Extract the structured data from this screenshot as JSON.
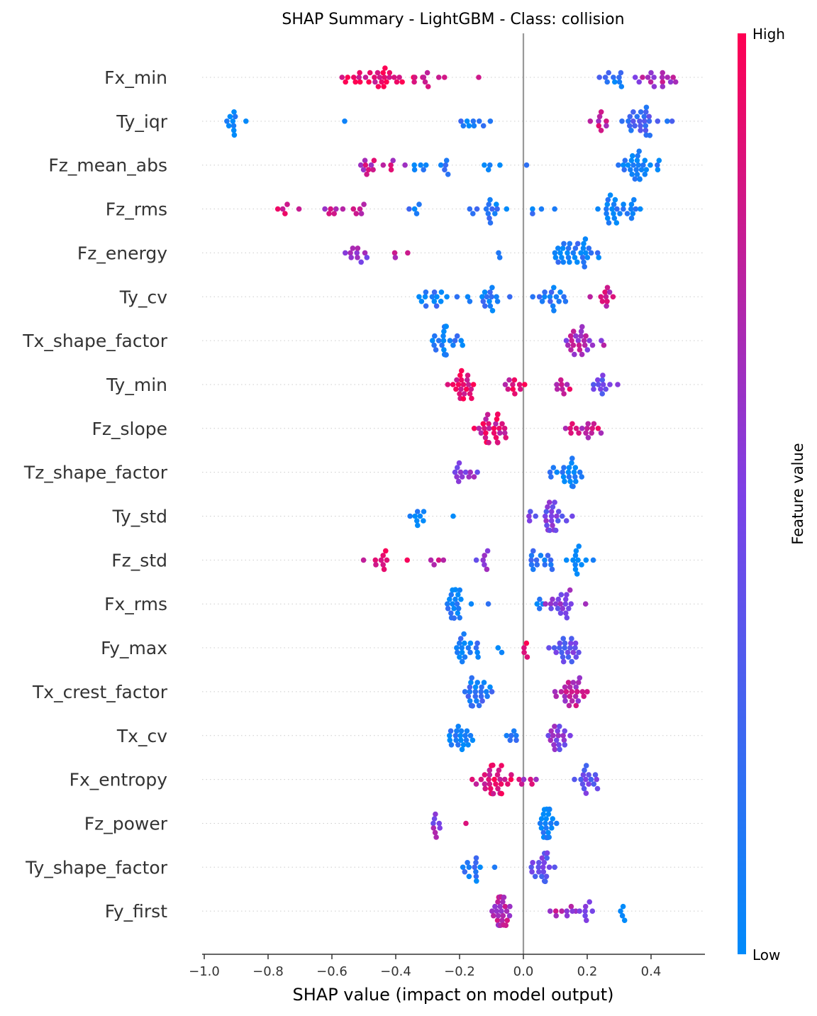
{
  "chart_data": {
    "type": "scatter",
    "title": "SHAP Summary - LightGBM - Class: collision",
    "xlabel": "SHAP value (impact on model output)",
    "xlim": [
      -1.0,
      0.57
    ],
    "x_ticks": [
      "−1.0",
      "−0.8",
      "−0.6",
      "−0.4",
      "−0.2",
      "0.0",
      "0.2",
      "0.4"
    ],
    "x_tick_values": [
      -1.0,
      -0.8,
      -0.6,
      -0.4,
      -0.2,
      0.0,
      0.2,
      0.4
    ],
    "colorbar": {
      "label": "Feature value",
      "high": "High",
      "low": "Low",
      "low_color": "#008bfb",
      "high_color": "#ff0052"
    },
    "features": [
      {
        "name": "Fx_min",
        "clusters": [
          [
            -0.46,
            32,
            0.13,
            0.9
          ],
          [
            -0.3,
            6,
            0.06,
            0.85
          ],
          [
            -0.14,
            1,
            0.0,
            0.9
          ],
          [
            0.3,
            10,
            0.07,
            0.15
          ],
          [
            0.42,
            16,
            0.08,
            0.65
          ]
        ]
      },
      {
        "name": "Ty_iqr",
        "clusters": [
          [
            -0.91,
            10,
            0.03,
            0.05
          ],
          [
            -0.56,
            1,
            0.0,
            0.05
          ],
          [
            -0.15,
            9,
            0.05,
            0.1
          ],
          [
            0.24,
            8,
            0.03,
            0.75
          ],
          [
            0.38,
            26,
            0.06,
            0.25
          ]
        ]
      },
      {
        "name": "Fz_mean_abs",
        "clusters": [
          [
            -0.45,
            14,
            0.06,
            0.75
          ],
          [
            -0.3,
            10,
            0.06,
            0.15
          ],
          [
            -0.1,
            4,
            0.04,
            0.1
          ],
          [
            0.01,
            1,
            0.0,
            0.1
          ],
          [
            0.36,
            28,
            0.06,
            0.05
          ]
        ]
      },
      {
        "name": "Fz_rms",
        "clusters": [
          [
            -0.74,
            4,
            0.03,
            0.85
          ],
          [
            -0.56,
            12,
            0.08,
            0.7
          ],
          [
            -0.32,
            4,
            0.05,
            0.15
          ],
          [
            -0.1,
            14,
            0.06,
            0.1
          ],
          [
            0.05,
            4,
            0.05,
            0.1
          ],
          [
            0.3,
            26,
            0.06,
            0.05
          ]
        ]
      },
      {
        "name": "Fz_energy",
        "clusters": [
          [
            -0.52,
            10,
            0.05,
            0.6
          ],
          [
            -0.38,
            3,
            0.03,
            0.8
          ],
          [
            -0.08,
            2,
            0.01,
            0.1
          ],
          [
            0.15,
            32,
            0.07,
            0.1
          ]
        ]
      },
      {
        "name": "Ty_cv",
        "clusters": [
          [
            -0.29,
            14,
            0.06,
            0.1
          ],
          [
            -0.11,
            16,
            0.06,
            0.1
          ],
          [
            0.08,
            16,
            0.06,
            0.15
          ],
          [
            0.26,
            10,
            0.04,
            0.75
          ]
        ]
      },
      {
        "name": "Tx_shape_factor",
        "clusters": [
          [
            -0.24,
            22,
            0.05,
            0.1
          ],
          [
            0.17,
            24,
            0.05,
            0.65
          ]
        ]
      },
      {
        "name": "Ty_min",
        "clusters": [
          [
            -0.18,
            22,
            0.04,
            0.9
          ],
          [
            -0.04,
            10,
            0.06,
            0.85
          ],
          [
            0.11,
            8,
            0.05,
            0.8
          ],
          [
            0.25,
            12,
            0.04,
            0.45
          ]
        ]
      },
      {
        "name": "Fz_slope",
        "clusters": [
          [
            -0.09,
            28,
            0.05,
            0.85
          ],
          [
            0.21,
            16,
            0.06,
            0.8
          ]
        ]
      },
      {
        "name": "Tz_shape_factor",
        "clusters": [
          [
            -0.18,
            12,
            0.04,
            0.55
          ],
          [
            0.14,
            22,
            0.04,
            0.05
          ]
        ]
      },
      {
        "name": "Ty_std",
        "clusters": [
          [
            -0.33,
            8,
            0.03,
            0.05
          ],
          [
            -0.22,
            1,
            0.0,
            0.05
          ],
          [
            0.09,
            26,
            0.05,
            0.45
          ]
        ]
      },
      {
        "name": "Fz_std",
        "clusters": [
          [
            -0.46,
            10,
            0.06,
            0.85
          ],
          [
            -0.28,
            4,
            0.06,
            0.8
          ],
          [
            -0.13,
            6,
            0.04,
            0.5
          ],
          [
            0.04,
            14,
            0.05,
            0.15
          ],
          [
            0.17,
            12,
            0.03,
            0.05
          ]
        ]
      },
      {
        "name": "Fx_rms",
        "clusters": [
          [
            -0.22,
            20,
            0.04,
            0.05
          ],
          [
            -0.11,
            1,
            0.0,
            0.05
          ],
          [
            0.04,
            4,
            0.02,
            0.1
          ],
          [
            0.12,
            20,
            0.04,
            0.5
          ]
        ]
      },
      {
        "name": "Fy_max",
        "clusters": [
          [
            -0.18,
            18,
            0.04,
            0.1
          ],
          [
            -0.08,
            2,
            0.02,
            0.1
          ],
          [
            0.01,
            4,
            0.02,
            0.9
          ],
          [
            0.13,
            22,
            0.04,
            0.4
          ]
        ]
      },
      {
        "name": "Tx_crest_factor",
        "clusters": [
          [
            -0.14,
            24,
            0.05,
            0.15
          ],
          [
            0.15,
            24,
            0.05,
            0.7
          ]
        ]
      },
      {
        "name": "Tx_cv",
        "clusters": [
          [
            -0.2,
            20,
            0.05,
            0.05
          ],
          [
            -0.04,
            6,
            0.03,
            0.1
          ],
          [
            0.11,
            18,
            0.04,
            0.5
          ]
        ]
      },
      {
        "name": "Fx_entropy",
        "clusters": [
          [
            -0.1,
            30,
            0.05,
            0.9
          ],
          [
            0.0,
            6,
            0.03,
            0.75
          ],
          [
            0.19,
            16,
            0.04,
            0.4
          ]
        ]
      },
      {
        "name": "Fz_power",
        "clusters": [
          [
            -0.28,
            8,
            0.02,
            0.55
          ],
          [
            -0.18,
            1,
            0.0,
            0.9
          ],
          [
            0.07,
            22,
            0.03,
            0.05
          ]
        ]
      },
      {
        "name": "Ty_shape_factor",
        "clusters": [
          [
            -0.17,
            12,
            0.03,
            0.1
          ],
          [
            -0.09,
            1,
            0.0,
            0.1
          ],
          [
            0.06,
            20,
            0.03,
            0.4
          ]
        ]
      },
      {
        "name": "Fy_first",
        "clusters": [
          [
            -0.07,
            26,
            0.03,
            0.7
          ],
          [
            0.12,
            8,
            0.05,
            0.7
          ],
          [
            0.2,
            8,
            0.04,
            0.5
          ],
          [
            0.31,
            4,
            0.01,
            0.05
          ]
        ]
      }
    ]
  }
}
